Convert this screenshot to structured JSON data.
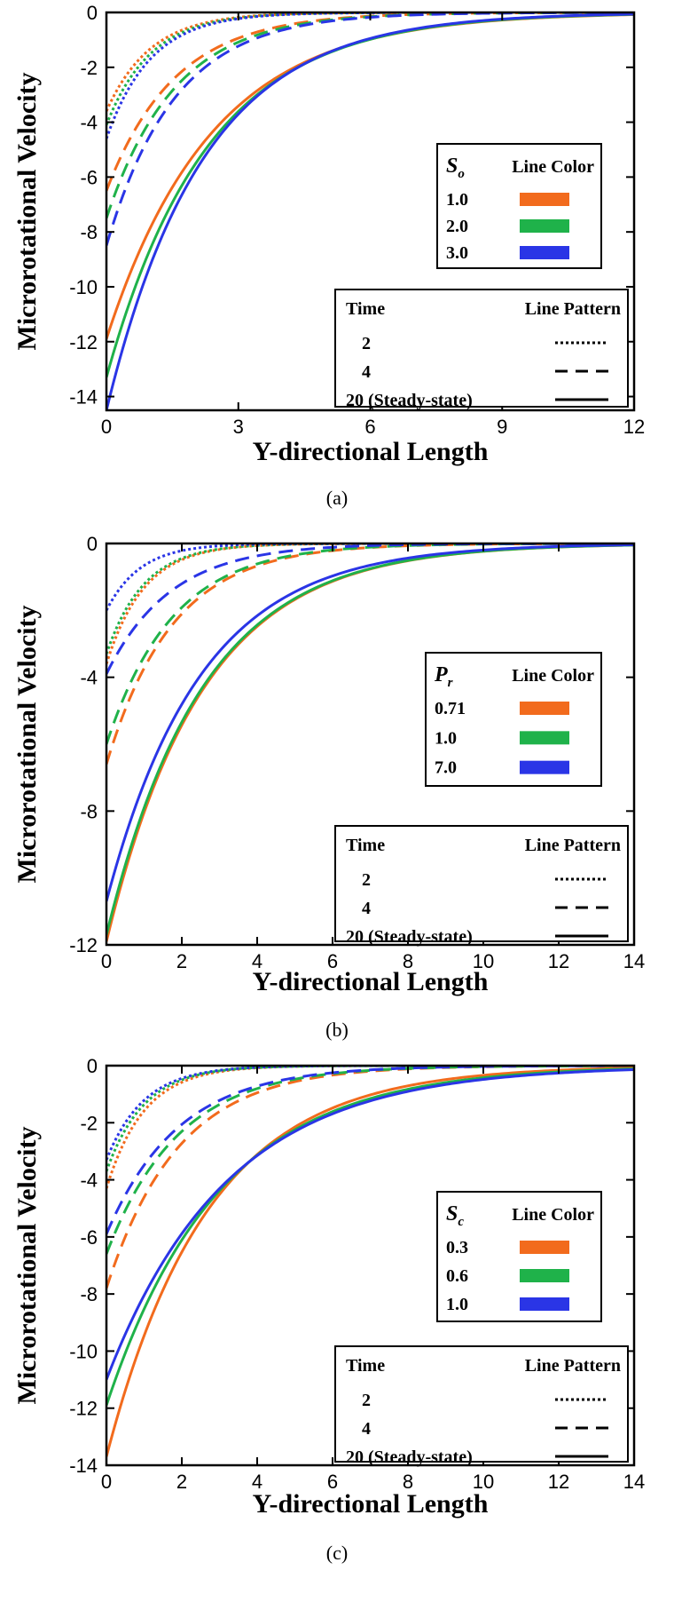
{
  "figure": {
    "legend_color_header": "Line Color",
    "legend_time_header": "Time",
    "legend_pattern_header": "Line Pattern",
    "times": [
      "2",
      "4",
      "20 (Steady-state)"
    ],
    "patterns": [
      "dotted",
      "dashed",
      "solid"
    ],
    "series_colors": [
      "#f26b1d",
      "#1fb24a",
      "#2a35e6"
    ]
  },
  "chart_data": [
    {
      "type": "line",
      "panel": "a",
      "caption": "(a)",
      "xlabel": "Y-directional Length",
      "ylabel": "Microrotational Velocity",
      "xlim": [
        0,
        12
      ],
      "ylim": [
        -14.5,
        0
      ],
      "xticks": [
        0,
        3,
        6,
        9,
        12
      ],
      "yticks": [
        0,
        -2,
        -4,
        -6,
        -8,
        -10,
        -12,
        -14
      ],
      "legend_param_symbol": "S",
      "legend_param_sub": "o",
      "series": [
        {
          "name": "1.0",
          "color": "#f26b1d",
          "time": "2",
          "start": -3.6,
          "decay": 1.0
        },
        {
          "name": "2.0",
          "color": "#1fb24a",
          "time": "2",
          "start": -4.1,
          "decay": 1.0
        },
        {
          "name": "3.0",
          "color": "#2a35e6",
          "time": "2",
          "start": -4.6,
          "decay": 1.0
        },
        {
          "name": "1.0",
          "color": "#f26b1d",
          "time": "4",
          "start": -6.5,
          "decay": 1.55
        },
        {
          "name": "2.0",
          "color": "#1fb24a",
          "time": "4",
          "start": -7.5,
          "decay": 1.55
        },
        {
          "name": "3.0",
          "color": "#2a35e6",
          "time": "4",
          "start": -8.5,
          "decay": 1.55
        },
        {
          "name": "1.0",
          "color": "#f26b1d",
          "time": "20",
          "start": -11.9,
          "decay": 2.4
        },
        {
          "name": "2.0",
          "color": "#1fb24a",
          "time": "20",
          "start": -13.3,
          "decay": 2.3
        },
        {
          "name": "3.0",
          "color": "#2a35e6",
          "time": "20",
          "start": -14.5,
          "decay": 2.2
        }
      ]
    },
    {
      "type": "line",
      "panel": "b",
      "caption": "(b)",
      "xlabel": "Y-directional Length",
      "ylabel": "Microrotational Velocity",
      "xlim": [
        0,
        14
      ],
      "ylim": [
        -12,
        0
      ],
      "xticks": [
        0,
        2,
        4,
        6,
        8,
        10,
        12,
        14
      ],
      "yticks": [
        0,
        -4,
        -8,
        -12
      ],
      "legend_param_symbol": "P",
      "legend_param_sub": "r",
      "series": [
        {
          "name": "0.71",
          "color": "#f26b1d",
          "time": "2",
          "start": -3.6,
          "decay": 1.0
        },
        {
          "name": "1.0",
          "color": "#1fb24a",
          "time": "2",
          "start": -3.3,
          "decay": 1.0
        },
        {
          "name": "7.0",
          "color": "#2a35e6",
          "time": "2",
          "start": -2.0,
          "decay": 0.9
        },
        {
          "name": "0.71",
          "color": "#f26b1d",
          "time": "4",
          "start": -6.6,
          "decay": 1.75
        },
        {
          "name": "1.0",
          "color": "#1fb24a",
          "time": "4",
          "start": -6.0,
          "decay": 1.75
        },
        {
          "name": "7.0",
          "color": "#2a35e6",
          "time": "4",
          "start": -3.9,
          "decay": 1.7
        },
        {
          "name": "0.71",
          "color": "#f26b1d",
          "time": "20",
          "start": -11.9,
          "decay": 2.55
        },
        {
          "name": "1.0",
          "color": "#1fb24a",
          "time": "20",
          "start": -11.7,
          "decay": 2.55
        },
        {
          "name": "7.0",
          "color": "#2a35e6",
          "time": "20",
          "start": -10.7,
          "decay": 2.5
        }
      ]
    },
    {
      "type": "line",
      "panel": "c",
      "caption": "(c)",
      "xlabel": "Y-directional Length",
      "ylabel": "Microrotational Velocity",
      "xlim": [
        0,
        14
      ],
      "ylim": [
        -14,
        0
      ],
      "xticks": [
        0,
        2,
        4,
        6,
        8,
        10,
        12,
        14
      ],
      "yticks": [
        0,
        -2,
        -4,
        -6,
        -8,
        -10,
        -12,
        -14
      ],
      "legend_param_symbol": "S",
      "legend_param_sub": "c",
      "series": [
        {
          "name": "0.3",
          "color": "#f26b1d",
          "time": "2",
          "start": -4.3,
          "decay": 1.0
        },
        {
          "name": "0.6",
          "color": "#1fb24a",
          "time": "2",
          "start": -3.7,
          "decay": 1.0
        },
        {
          "name": "1.0",
          "color": "#2a35e6",
          "time": "2",
          "start": -3.3,
          "decay": 1.0
        },
        {
          "name": "0.3",
          "color": "#f26b1d",
          "time": "4",
          "start": -7.8,
          "decay": 1.9
        },
        {
          "name": "0.6",
          "color": "#1fb24a",
          "time": "4",
          "start": -6.6,
          "decay": 1.9
        },
        {
          "name": "1.0",
          "color": "#2a35e6",
          "time": "4",
          "start": -5.9,
          "decay": 1.9
        },
        {
          "name": "0.3",
          "color": "#f26b1d",
          "time": "20",
          "start": -13.7,
          "decay": 2.7
        },
        {
          "name": "0.6",
          "color": "#1fb24a",
          "time": "20",
          "start": -11.9,
          "decay": 3.0
        },
        {
          "name": "1.0",
          "color": "#2a35e6",
          "time": "20",
          "start": -11.0,
          "decay": 3.2
        }
      ]
    }
  ]
}
